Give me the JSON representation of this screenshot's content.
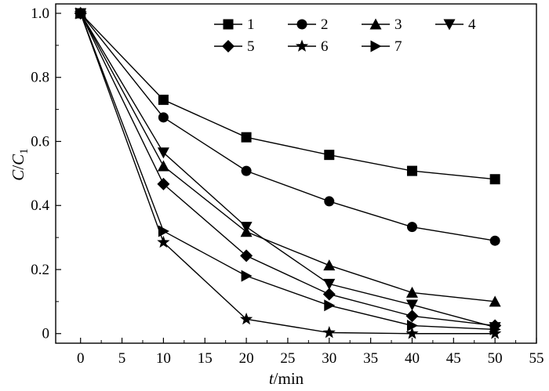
{
  "chart_data": {
    "type": "line",
    "title": "",
    "xlabel": {
      "italic": "t",
      "rest": "/min"
    },
    "ylabel": {
      "C": "C",
      "slash": "/",
      "C1": "C",
      "sub": "1"
    },
    "xlim": [
      -3,
      55
    ],
    "ylim": [
      -0.03,
      1.0
    ],
    "xticks": [
      0,
      5,
      10,
      15,
      20,
      25,
      30,
      35,
      40,
      45,
      50,
      55
    ],
    "xtick_labels": [
      "0",
      "5",
      "10",
      "15",
      "20",
      "25",
      "30",
      "35",
      "40",
      "45",
      "50",
      "55"
    ],
    "yticks": [
      0,
      0.2,
      0.4,
      0.6,
      0.8,
      1.0
    ],
    "ytick_labels": [
      "0",
      "0.2",
      "0.4",
      "0.6",
      "0.8",
      "1.0"
    ],
    "grid": false,
    "legend_position": "top-right",
    "x": [
      0,
      10,
      20,
      30,
      40,
      50
    ],
    "series": [
      {
        "name": "1",
        "marker": "square",
        "values": [
          1.0,
          0.73,
          0.613,
          0.558,
          0.508,
          0.482
        ]
      },
      {
        "name": "2",
        "marker": "circle",
        "values": [
          1.0,
          0.675,
          0.508,
          0.413,
          0.333,
          0.29
        ]
      },
      {
        "name": "3",
        "marker": "triangle-up",
        "values": [
          1.0,
          0.523,
          0.318,
          0.213,
          0.128,
          0.1
        ]
      },
      {
        "name": "4",
        "marker": "triangle-down",
        "values": [
          1.0,
          0.565,
          0.333,
          0.155,
          0.09,
          0.02
        ]
      },
      {
        "name": "5",
        "marker": "diamond",
        "values": [
          1.0,
          0.467,
          0.243,
          0.123,
          0.055,
          0.025
        ]
      },
      {
        "name": "6",
        "marker": "star",
        "values": [
          1.0,
          0.285,
          0.045,
          0.003,
          0.0,
          0.0
        ]
      },
      {
        "name": "7",
        "marker": "triangle-right",
        "values": [
          1.0,
          0.32,
          0.18,
          0.088,
          0.025,
          0.013
        ]
      }
    ]
  }
}
